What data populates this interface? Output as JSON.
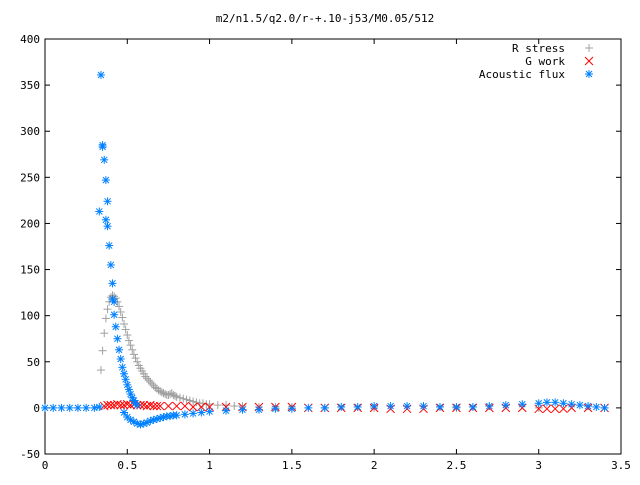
{
  "chart_data": {
    "type": "scatter",
    "title": "m2/n1.5/q2.0/r-+.10-j53/M0.05/512",
    "xlabel": "",
    "ylabel": "",
    "xlim": [
      0,
      3.5
    ],
    "ylim": [
      -50,
      400
    ],
    "grid": false,
    "legend_position": "top-right",
    "x_ticks": [
      "0",
      "0.5",
      "1",
      "1.5",
      "2",
      "2.5",
      "3",
      "3.5"
    ],
    "y_ticks": [
      "-50",
      "0",
      "50",
      "100",
      "150",
      "200",
      "250",
      "300",
      "350",
      "400"
    ],
    "series": [
      {
        "name": "R stress",
        "marker": "+",
        "color": "#a0a0a0",
        "points": [
          [
            0.34,
            41
          ],
          [
            0.35,
            62
          ],
          [
            0.36,
            81
          ],
          [
            0.37,
            97
          ],
          [
            0.38,
            107
          ],
          [
            0.39,
            115
          ],
          [
            0.4,
            120
          ],
          [
            0.41,
            122
          ],
          [
            0.42,
            121
          ],
          [
            0.43,
            119
          ],
          [
            0.44,
            115
          ],
          [
            0.45,
            110
          ],
          [
            0.46,
            104
          ],
          [
            0.47,
            98
          ],
          [
            0.48,
            91
          ],
          [
            0.49,
            85
          ],
          [
            0.5,
            79
          ],
          [
            0.51,
            73
          ],
          [
            0.52,
            68
          ],
          [
            0.53,
            63
          ],
          [
            0.54,
            58
          ],
          [
            0.55,
            54
          ],
          [
            0.56,
            50
          ],
          [
            0.57,
            46
          ],
          [
            0.58,
            43
          ],
          [
            0.59,
            40
          ],
          [
            0.6,
            37
          ],
          [
            0.61,
            34
          ],
          [
            0.62,
            32
          ],
          [
            0.63,
            30
          ],
          [
            0.64,
            28
          ],
          [
            0.65,
            26
          ],
          [
            0.66,
            24
          ],
          [
            0.67,
            22
          ],
          [
            0.68,
            21
          ],
          [
            0.69,
            19
          ],
          [
            0.7,
            18
          ],
          [
            0.71,
            17
          ],
          [
            0.72,
            16
          ],
          [
            0.73,
            15
          ],
          [
            0.74,
            14
          ],
          [
            0.75,
            14
          ],
          [
            0.76,
            15
          ],
          [
            0.77,
            16
          ],
          [
            0.78,
            14
          ],
          [
            0.79,
            13
          ],
          [
            0.8,
            12
          ],
          [
            0.82,
            11
          ],
          [
            0.84,
            10
          ],
          [
            0.86,
            9
          ],
          [
            0.88,
            8
          ],
          [
            0.9,
            7
          ],
          [
            0.92,
            6
          ],
          [
            0.94,
            5
          ],
          [
            0.96,
            5
          ],
          [
            0.98,
            4
          ],
          [
            1.0,
            4
          ],
          [
            1.05,
            3
          ],
          [
            1.1,
            3
          ],
          [
            1.15,
            2
          ],
          [
            1.2,
            2
          ],
          [
            1.3,
            1
          ],
          [
            1.4,
            1
          ],
          [
            1.5,
            1
          ],
          [
            1.7,
            0
          ],
          [
            2.0,
            0
          ],
          [
            2.5,
            0
          ],
          [
            3.0,
            0
          ],
          [
            3.4,
            0
          ]
        ]
      },
      {
        "name": "G work",
        "marker": "x",
        "color": "#ff0000",
        "points": [
          [
            0.36,
            2
          ],
          [
            0.38,
            3
          ],
          [
            0.4,
            3
          ],
          [
            0.42,
            3
          ],
          [
            0.44,
            4
          ],
          [
            0.46,
            3
          ],
          [
            0.48,
            3
          ],
          [
            0.5,
            4
          ],
          [
            0.52,
            3
          ],
          [
            0.54,
            4
          ],
          [
            0.56,
            3
          ],
          [
            0.58,
            3
          ],
          [
            0.6,
            3
          ],
          [
            0.62,
            2
          ],
          [
            0.64,
            3
          ],
          [
            0.66,
            2
          ],
          [
            0.68,
            2
          ],
          [
            0.7,
            2
          ],
          [
            0.75,
            2
          ],
          [
            0.8,
            2
          ],
          [
            0.85,
            2
          ],
          [
            0.9,
            1
          ],
          [
            0.95,
            1
          ],
          [
            1.0,
            1
          ],
          [
            1.1,
            1
          ],
          [
            1.2,
            1
          ],
          [
            1.3,
            1
          ],
          [
            1.4,
            1
          ],
          [
            1.5,
            1
          ],
          [
            1.6,
            0
          ],
          [
            1.7,
            0
          ],
          [
            1.8,
            0
          ],
          [
            1.9,
            0
          ],
          [
            2.0,
            0
          ],
          [
            2.1,
            -1
          ],
          [
            2.2,
            -1
          ],
          [
            2.3,
            -1
          ],
          [
            2.4,
            0
          ],
          [
            2.5,
            0
          ],
          [
            2.6,
            0
          ],
          [
            2.7,
            0
          ],
          [
            2.8,
            0
          ],
          [
            2.9,
            0
          ],
          [
            3.0,
            -1
          ],
          [
            3.05,
            -1
          ],
          [
            3.1,
            -1
          ],
          [
            3.15,
            -1
          ],
          [
            3.2,
            0
          ],
          [
            3.3,
            0
          ],
          [
            3.4,
            0
          ]
        ]
      },
      {
        "name": "Acoustic flux",
        "marker": "*",
        "color": "#0080ff",
        "points": [
          [
            0.0,
            0
          ],
          [
            0.05,
            0
          ],
          [
            0.1,
            0
          ],
          [
            0.15,
            0
          ],
          [
            0.2,
            0
          ],
          [
            0.25,
            0
          ],
          [
            0.3,
            0
          ],
          [
            0.33,
            1
          ],
          [
            0.34,
            361
          ],
          [
            0.33,
            213
          ],
          [
            0.35,
            285
          ],
          [
            0.35,
            283
          ],
          [
            0.36,
            269
          ],
          [
            0.37,
            247
          ],
          [
            0.38,
            224
          ],
          [
            0.37,
            204
          ],
          [
            0.38,
            197
          ],
          [
            0.39,
            176
          ],
          [
            0.4,
            155
          ],
          [
            0.41,
            135
          ],
          [
            0.41,
            118
          ],
          [
            0.42,
            115
          ],
          [
            0.42,
            101
          ],
          [
            0.43,
            88
          ],
          [
            0.44,
            75
          ],
          [
            0.45,
            63
          ],
          [
            0.46,
            53
          ],
          [
            0.47,
            44
          ],
          [
            0.48,
            37
          ],
          [
            0.49,
            31
          ],
          [
            0.5,
            25
          ],
          [
            0.51,
            20
          ],
          [
            0.52,
            15
          ],
          [
            0.53,
            11
          ],
          [
            0.54,
            8
          ],
          [
            0.55,
            5
          ],
          [
            0.56,
            3
          ],
          [
            0.48,
            -5
          ],
          [
            0.5,
            -10
          ],
          [
            0.52,
            -13
          ],
          [
            0.54,
            -15
          ],
          [
            0.56,
            -17
          ],
          [
            0.58,
            -18
          ],
          [
            0.6,
            -17
          ],
          [
            0.62,
            -16
          ],
          [
            0.64,
            -14
          ],
          [
            0.66,
            -13
          ],
          [
            0.68,
            -12
          ],
          [
            0.7,
            -11
          ],
          [
            0.72,
            -10
          ],
          [
            0.74,
            -9
          ],
          [
            0.76,
            -9
          ],
          [
            0.78,
            -8
          ],
          [
            0.8,
            -8
          ],
          [
            0.85,
            -7
          ],
          [
            0.9,
            -6
          ],
          [
            0.95,
            -5
          ],
          [
            1.0,
            -4
          ],
          [
            1.1,
            -3
          ],
          [
            1.2,
            -2
          ],
          [
            1.3,
            -2
          ],
          [
            1.4,
            -1
          ],
          [
            1.5,
            -1
          ],
          [
            1.6,
            0
          ],
          [
            1.7,
            0
          ],
          [
            1.8,
            1
          ],
          [
            1.9,
            1
          ],
          [
            2.0,
            2
          ],
          [
            2.1,
            2
          ],
          [
            2.2,
            2
          ],
          [
            2.3,
            2
          ],
          [
            2.4,
            1
          ],
          [
            2.5,
            1
          ],
          [
            2.6,
            1
          ],
          [
            2.7,
            2
          ],
          [
            2.8,
            3
          ],
          [
            2.9,
            4
          ],
          [
            3.0,
            5
          ],
          [
            3.05,
            6
          ],
          [
            3.1,
            6
          ],
          [
            3.15,
            5
          ],
          [
            3.2,
            4
          ],
          [
            3.25,
            3
          ],
          [
            3.3,
            2
          ],
          [
            3.35,
            1
          ],
          [
            3.4,
            0
          ]
        ]
      }
    ]
  }
}
